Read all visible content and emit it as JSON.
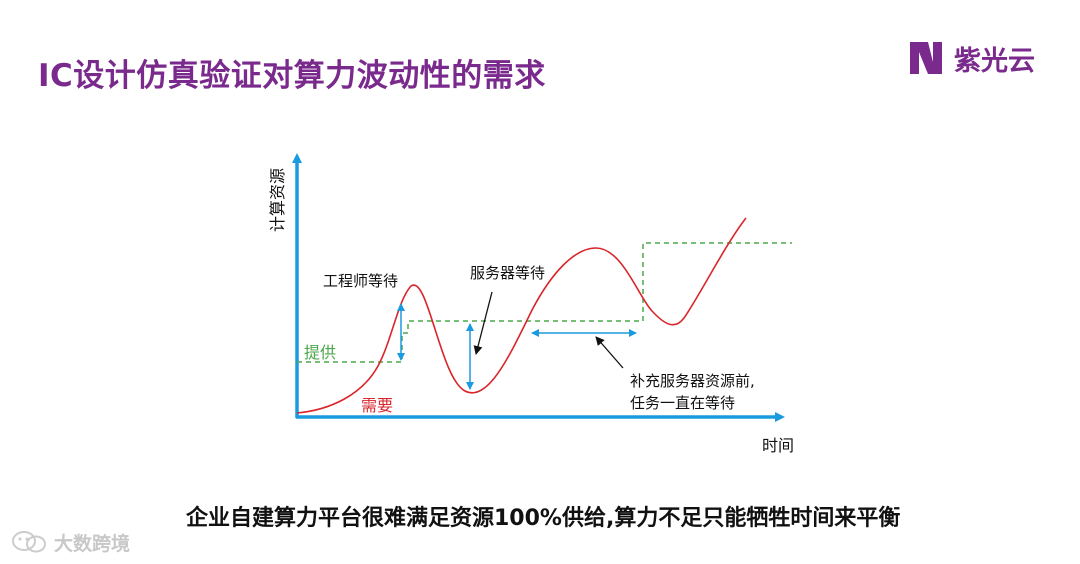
{
  "title": "IC设计仿真验证对算力波动性的需求",
  "logo": {
    "text": "紫光云",
    "icon": "unisoc-cloud-logo-icon",
    "color": "#7a2a8c"
  },
  "diagram": {
    "y_axis_label": "计算资源",
    "x_axis_label": "时间",
    "supply_label": "提供",
    "demand_label": "需要",
    "annotations": {
      "engineer_wait": "工程师等待",
      "server_wait": "服务器等待",
      "task_wait_line1": "补充服务器资源前,",
      "task_wait_line2": "任务一直在等待"
    },
    "colors": {
      "axis": "#1a9be0",
      "supply": "#4aa84a",
      "demand": "#d8262b",
      "arrow": "#1a9be0",
      "pointer": "#111111"
    }
  },
  "caption": "企业自建算力平台很难满足资源100%供给,算力不足只能牺牲时间来平衡",
  "watermark": {
    "text": "大数跨境",
    "icon": "wechat-logo-icon"
  }
}
